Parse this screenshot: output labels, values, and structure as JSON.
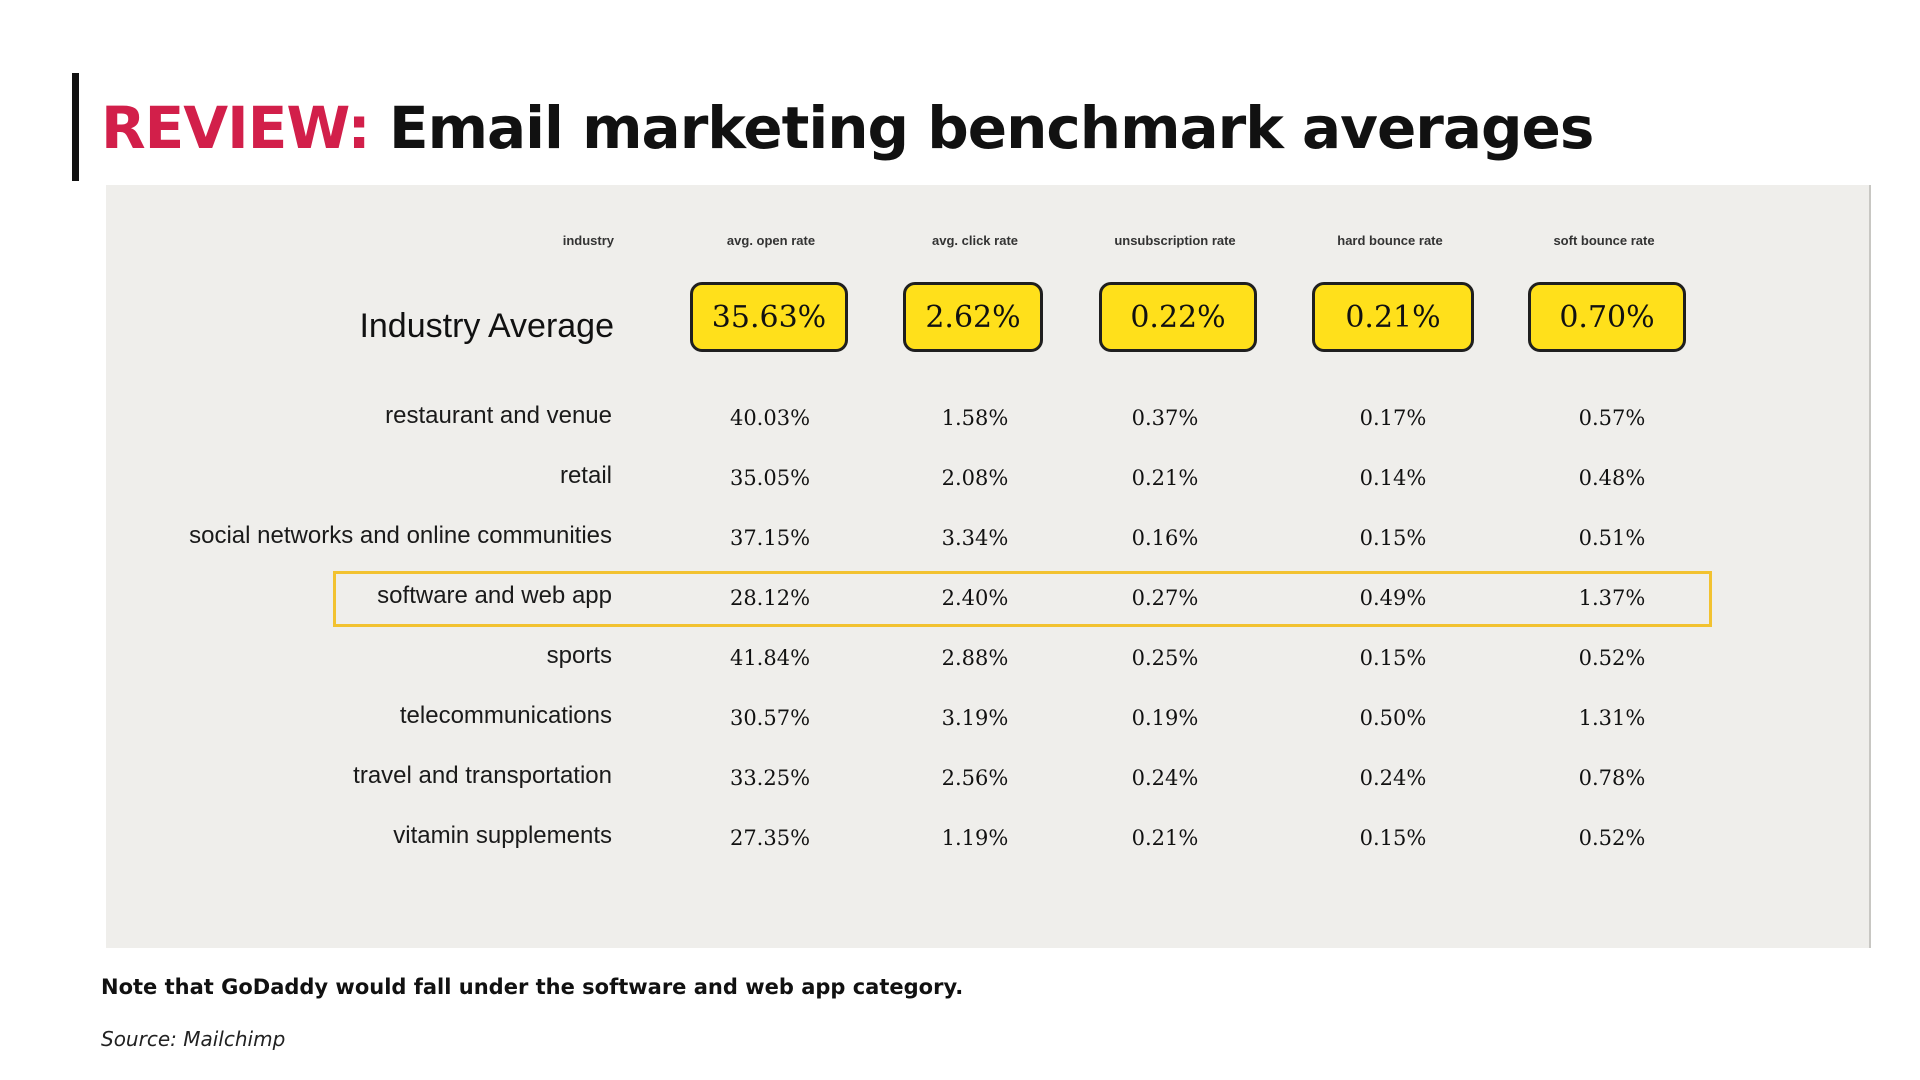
{
  "title": {
    "accent": "REVIEW:",
    "text": "Email marketing benchmark averages"
  },
  "table": {
    "headers": [
      "industry",
      "avg. open rate",
      "avg. click rate",
      "unsubscription rate",
      "hard bounce rate",
      "soft bounce rate"
    ],
    "average": {
      "label": "Industry Average",
      "values": [
        "35.63%",
        "2.62%",
        "0.22%",
        "0.21%",
        "0.70%"
      ]
    },
    "rows": [
      {
        "label": "restaurant and venue",
        "values": [
          "40.03%",
          "1.58%",
          "0.37%",
          "0.17%",
          "0.57%"
        ]
      },
      {
        "label": "retail",
        "values": [
          "35.05%",
          "2.08%",
          "0.21%",
          "0.14%",
          "0.48%"
        ]
      },
      {
        "label": "social networks and online communities",
        "values": [
          "37.15%",
          "3.34%",
          "0.16%",
          "0.15%",
          "0.51%"
        ]
      },
      {
        "label": "software and web app",
        "values": [
          "28.12%",
          "2.40%",
          "0.27%",
          "0.49%",
          "1.37%"
        ]
      },
      {
        "label": "sports",
        "values": [
          "41.84%",
          "2.88%",
          "0.25%",
          "0.15%",
          "0.52%"
        ]
      },
      {
        "label": "telecommunications",
        "values": [
          "30.57%",
          "3.19%",
          "0.19%",
          "0.50%",
          "1.31%"
        ]
      },
      {
        "label": "travel and transportation",
        "values": [
          "33.25%",
          "2.56%",
          "0.24%",
          "0.24%",
          "0.78%"
        ]
      },
      {
        "label": "vitamin supplements",
        "values": [
          "27.35%",
          "1.19%",
          "0.21%",
          "0.15%",
          "0.52%"
        ]
      }
    ],
    "highlighted_row": "software and web app"
  },
  "note": "Note that GoDaddy would fall under the software and web app category.",
  "source": "Source: Mailchimp",
  "colors": {
    "accent": "#d21f4a",
    "panel": "#efeeeb",
    "average_box": "#ffe01b",
    "highlight": "#f2c230"
  }
}
